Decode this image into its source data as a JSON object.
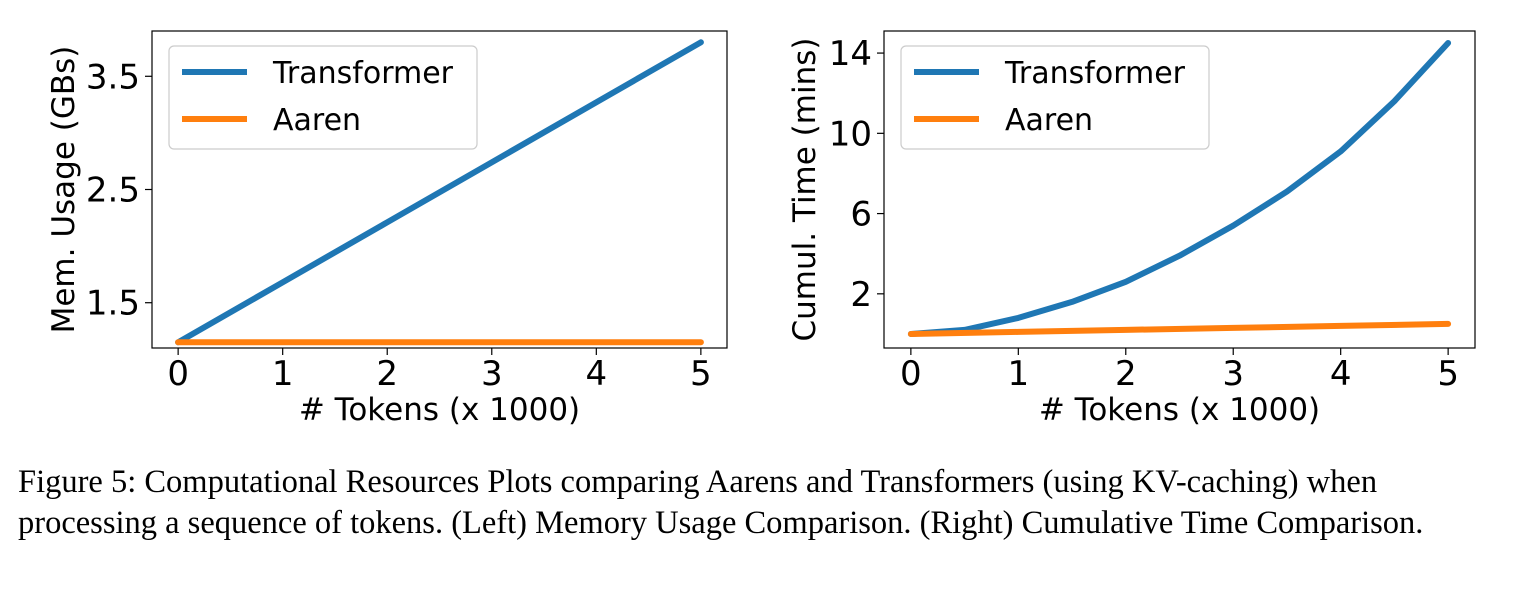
{
  "chart_data": [
    {
      "type": "line",
      "xlabel": "# Tokens (x 1000)",
      "ylabel": "Mem. Usage (GBs)",
      "xlim": [
        -0.25,
        5.25
      ],
      "ylim": [
        1.1,
        3.9
      ],
      "xticks": [
        0,
        1,
        2,
        3,
        4,
        5
      ],
      "yticks": [
        1.5,
        2.5,
        3.5
      ],
      "ytick_labels": [
        "1.5",
        "2.5",
        "3.5"
      ],
      "legend_position": "top-left",
      "grid": false,
      "series": [
        {
          "name": "Transformer",
          "color": "#1f77b4",
          "x": [
            0,
            1,
            2,
            3,
            4,
            5
          ],
          "y": [
            1.15,
            1.68,
            2.21,
            2.74,
            3.27,
            3.8
          ]
        },
        {
          "name": "Aaren",
          "color": "#ff7f0e",
          "x": [
            0,
            1,
            2,
            3,
            4,
            5
          ],
          "y": [
            1.15,
            1.15,
            1.15,
            1.15,
            1.15,
            1.15
          ]
        }
      ]
    },
    {
      "type": "line",
      "xlabel": "# Tokens (x 1000)",
      "ylabel": "Cumul. Time (mins)",
      "xlim": [
        -0.25,
        5.25
      ],
      "ylim": [
        -0.7,
        15.1
      ],
      "xticks": [
        0,
        1,
        2,
        3,
        4,
        5
      ],
      "yticks": [
        2,
        6,
        10,
        14
      ],
      "ytick_labels": [
        "2",
        "6",
        "10",
        "14"
      ],
      "legend_position": "top-left",
      "grid": false,
      "series": [
        {
          "name": "Transformer",
          "color": "#1f77b4",
          "x": [
            0,
            0.5,
            1,
            1.5,
            2,
            2.5,
            3,
            3.5,
            4,
            4.5,
            5
          ],
          "y": [
            0,
            0.2,
            0.8,
            1.6,
            2.6,
            3.9,
            5.4,
            7.1,
            9.1,
            11.6,
            14.5
          ]
        },
        {
          "name": "Aaren",
          "color": "#ff7f0e",
          "x": [
            0,
            1,
            2,
            3,
            4,
            5
          ],
          "y": [
            0,
            0.1,
            0.2,
            0.3,
            0.4,
            0.5
          ]
        }
      ]
    }
  ],
  "caption": "Figure 5: Computational Resources Plots comparing Aarens and Transformers (using KV-caching) when processing a sequence of tokens. (Left) Memory Usage Comparison. (Right) Cumulative Time Comparison."
}
